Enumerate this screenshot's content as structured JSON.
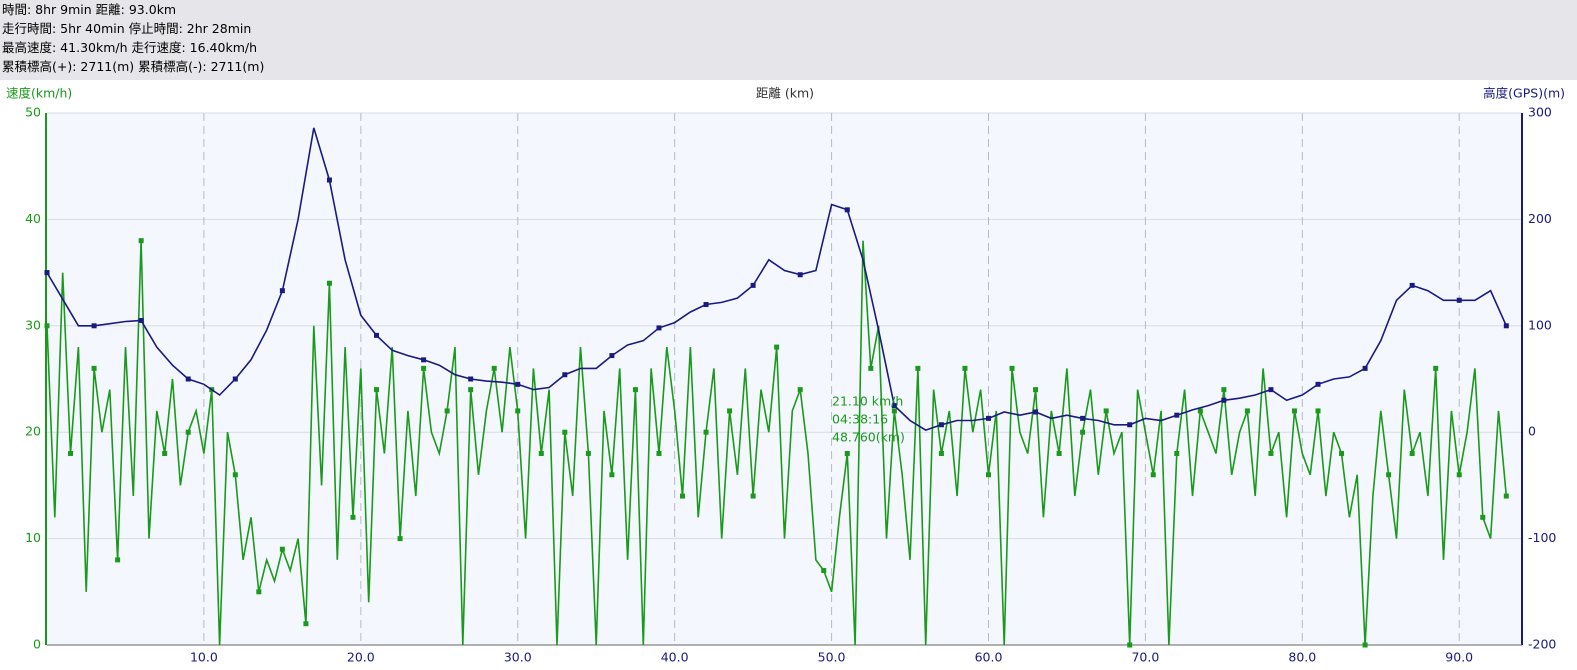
{
  "header": {
    "lines": [
      "時間: 8hr 9min 距離: 93.0km",
      "走行時間: 5hr 40min 停止時間: 2hr 28min",
      "最高速度: 41.30km/h 走行速度: 16.40km/h",
      "累積標高(+): 2711(m) 累積標高(-): 2711(m)"
    ]
  },
  "chart_data": {
    "type": "line",
    "xlabel": "距離 (km)",
    "ylabel": "速度(km/h)",
    "y2label": "高度(GPS)(m)",
    "xlim": [
      0,
      94
    ],
    "xticks": [
      {
        "value": 10,
        "label": "10.0"
      },
      {
        "value": 20,
        "label": "20.0"
      },
      {
        "value": 30,
        "label": "30.0"
      },
      {
        "value": 40,
        "label": "40.0"
      },
      {
        "value": 50,
        "label": "50.0"
      },
      {
        "value": 60,
        "label": "60.0"
      },
      {
        "value": 70,
        "label": "70.0"
      },
      {
        "value": 80,
        "label": "80.0"
      },
      {
        "value": 90,
        "label": "90.0"
      }
    ],
    "ylim": [
      0,
      50
    ],
    "yticks": [
      0,
      10,
      20,
      30,
      40,
      50
    ],
    "y2lim": [
      -200,
      300
    ],
    "y2ticks": [
      -200,
      -100,
      0,
      100,
      200,
      300
    ],
    "grid": true,
    "series": [
      {
        "color": "#1a9a1a",
        "x": [
          0,
          0.5,
          1,
          1.5,
          2,
          2.5,
          3,
          3.5,
          4,
          4.5,
          5,
          5.5,
          6,
          6.5,
          7,
          7.5,
          8,
          8.5,
          9,
          9.5,
          10,
          10.5,
          11,
          11.5,
          12,
          12.5,
          13,
          13.5,
          14,
          14.5,
          15,
          15.5,
          16,
          16.5,
          17,
          17.5,
          18,
          18.5,
          19,
          19.5,
          20,
          20.5,
          21,
          21.5,
          22,
          22.5,
          23,
          23.5,
          24,
          24.5,
          25,
          25.5,
          26,
          26.5,
          27,
          27.5,
          28,
          28.5,
          29,
          29.5,
          30,
          30.5,
          31,
          31.5,
          32,
          32.5,
          33,
          33.5,
          34,
          34.5,
          35,
          35.5,
          36,
          36.5,
          37,
          37.5,
          38,
          38.5,
          39,
          39.5,
          40,
          40.5,
          41,
          41.5,
          42,
          42.5,
          43,
          43.5,
          44,
          44.5,
          45,
          45.5,
          46,
          46.5,
          47,
          47.5,
          48,
          48.5,
          49,
          49.5,
          50,
          50.5,
          51,
          51.5,
          52,
          52.5,
          53,
          53.5,
          54,
          54.5,
          55,
          55.5,
          56,
          56.5,
          57,
          57.5,
          58,
          58.5,
          59,
          59.5,
          60,
          60.5,
          61,
          61.5,
          62,
          62.5,
          63,
          63.5,
          64,
          64.5,
          65,
          65.5,
          66,
          66.5,
          67,
          67.5,
          68,
          68.5,
          69,
          69.5,
          70,
          70.5,
          71,
          71.5,
          72,
          72.5,
          73,
          73.5,
          74,
          74.5,
          75,
          75.5,
          76,
          76.5,
          77,
          77.5,
          78,
          78.5,
          79,
          79.5,
          80,
          80.5,
          81,
          81.5,
          82,
          82.5,
          83,
          83.5,
          84,
          84.5,
          85,
          85.5,
          86,
          86.5,
          87,
          87.5,
          88,
          88.5,
          89,
          89.5,
          90,
          90.5,
          91,
          91.5,
          92,
          92.5,
          93
        ],
        "values": [
          30,
          12,
          35,
          18,
          28,
          5,
          26,
          20,
          24,
          8,
          28,
          14,
          38,
          10,
          22,
          18,
          25,
          15,
          20,
          22,
          18,
          24,
          0,
          20,
          16,
          8,
          12,
          5,
          8,
          6,
          9,
          7,
          10,
          2,
          30,
          15,
          34,
          8,
          28,
          12,
          26,
          4,
          24,
          18,
          28,
          10,
          22,
          14,
          26,
          20,
          18,
          22,
          28,
          0,
          24,
          16,
          22,
          26,
          20,
          28,
          22,
          10,
          26,
          18,
          24,
          0,
          20,
          14,
          28,
          18,
          0,
          22,
          16,
          26,
          8,
          24,
          0,
          26,
          18,
          28,
          22,
          14,
          28,
          12,
          20,
          26,
          10,
          22,
          16,
          26,
          14,
          24,
          20,
          28,
          10,
          22,
          24,
          18,
          8,
          7,
          5,
          12,
          18,
          0,
          38,
          26,
          30,
          10,
          22,
          16,
          8,
          26,
          0,
          24,
          18,
          22,
          14,
          26,
          20,
          24,
          16,
          22,
          0,
          26,
          20,
          18,
          24,
          12,
          22,
          18,
          26,
          14,
          20,
          24,
          16,
          22,
          18,
          20,
          0,
          24,
          20,
          16,
          22,
          0,
          18,
          24,
          14,
          22,
          20,
          18,
          24,
          16,
          20,
          22,
          14,
          26,
          18,
          20,
          12,
          22,
          18,
          16,
          22,
          14,
          20,
          18,
          12,
          16,
          0,
          14,
          22,
          16,
          10,
          24,
          18,
          20,
          14,
          26,
          8,
          22,
          16,
          20,
          26,
          12,
          10,
          22,
          14
        ]
      },
      {
        "color": "#1a1a80",
        "axis": "y2",
        "x": [
          0,
          1,
          2,
          3,
          4,
          5,
          6,
          7,
          8,
          9,
          10,
          11,
          12,
          13,
          14,
          15,
          16,
          17,
          18,
          19,
          20,
          21,
          22,
          23,
          24,
          25,
          26,
          27,
          28,
          29,
          30,
          31,
          32,
          33,
          34,
          35,
          36,
          37,
          38,
          39,
          40,
          41,
          42,
          43,
          44,
          45,
          46,
          47,
          48,
          49,
          50,
          51,
          52,
          53,
          54,
          55,
          56,
          57,
          58,
          59,
          60,
          61,
          62,
          63,
          64,
          65,
          66,
          67,
          68,
          69,
          70,
          71,
          72,
          73,
          74,
          75,
          76,
          77,
          78,
          79,
          80,
          81,
          82,
          83,
          84,
          85,
          86,
          87,
          88,
          89,
          90,
          91,
          92,
          93
        ],
        "values": [
          150,
          125,
          100,
          100,
          102,
          104,
          105,
          80,
          63,
          50,
          45,
          35,
          50,
          68,
          96,
          133,
          200,
          286,
          237,
          162,
          110,
          91,
          77,
          72,
          68,
          63,
          54,
          50,
          48,
          47,
          45,
          40,
          42,
          54,
          60,
          60,
          72,
          82,
          86,
          98,
          103,
          113,
          120,
          122,
          126,
          138,
          162,
          152,
          148,
          152,
          214,
          209,
          162,
          96,
          25,
          11,
          2,
          7,
          11,
          11,
          13,
          19,
          16,
          19,
          13,
          16,
          13,
          11,
          7,
          7,
          13,
          11,
          16,
          21,
          25,
          30,
          32,
          35,
          40,
          30,
          35,
          45,
          50,
          52,
          60,
          86,
          124,
          138,
          133,
          124,
          124,
          124,
          133,
          100
        ]
      }
    ],
    "annotations": [
      "21.10 km/h",
      "04:38:16",
      "48.760(km)"
    ]
  }
}
